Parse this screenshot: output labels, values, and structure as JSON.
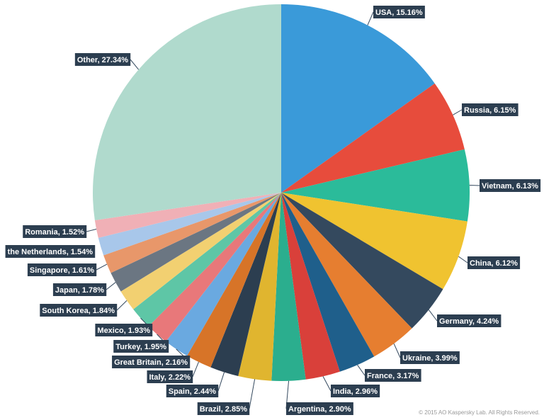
{
  "chart_data": {
    "type": "pie",
    "value_labels": [
      "USA, 15.16%",
      "Russia, 6.15%",
      "Vietnam, 6.13%",
      "China, 6.12%",
      "Germany, 4.24%",
      "Ukraine, 3.99%",
      "France, 3.17%",
      "India, 2.96%",
      "Argentina, 2.90%",
      "Brazil, 2.85%",
      "Spain, 2.44%",
      "Italy, 2.22%",
      "Great Britain, 2.16%",
      "Turkey, 1.95%",
      "Mexico, 1.93%",
      "South Korea, 1.84%",
      "Japan, 1.78%",
      "Singapore, 1.61%",
      "the Netherlands, 1.54%",
      "Romania, 1.52%",
      "Other, 27.34%"
    ],
    "values": [
      15.16,
      6.15,
      6.13,
      6.12,
      4.24,
      3.99,
      3.17,
      2.96,
      2.9,
      2.85,
      2.44,
      2.22,
      2.16,
      1.95,
      1.93,
      1.84,
      1.78,
      1.61,
      1.54,
      1.52,
      27.34
    ],
    "colors": [
      "#3a9ad9",
      "#e74c3c",
      "#2bbb9a",
      "#f0c330",
      "#34495e",
      "#e67e30",
      "#1f5f8b",
      "#d9403a",
      "#2bae8e",
      "#e0b52f",
      "#2c3e50",
      "#d77428",
      "#6aa9e0",
      "#e8787a",
      "#5ec6a6",
      "#f2d071",
      "#6b7682",
      "#e8976a",
      "#a8c7ea",
      "#f0b0b6",
      "#b0dacd"
    ],
    "footnote": "© 2015 AO Kaspersky Lab. All Rights Reserved."
  }
}
